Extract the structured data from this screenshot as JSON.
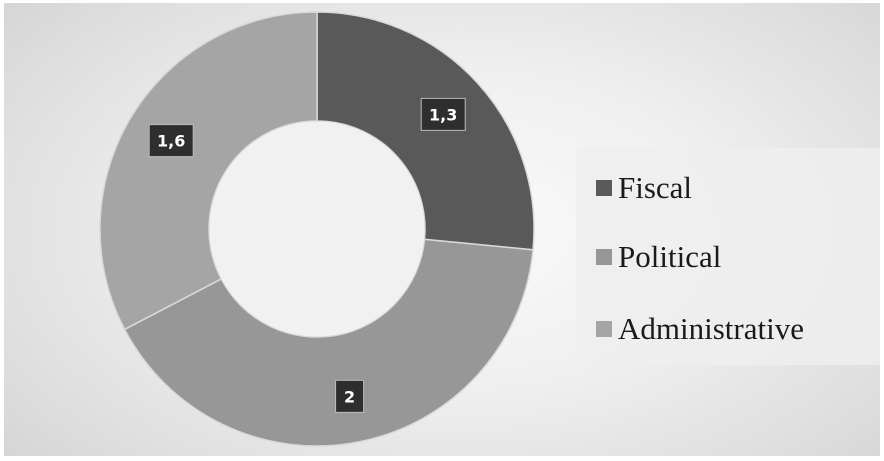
{
  "colors": {
    "Fiscal": "#595959",
    "Political": "#979797",
    "Administrative": "#a5a5a5",
    "label_box": "#2e2e2e",
    "label_text": "#ffffff"
  },
  "legend": {
    "items": [
      {
        "label": "Fiscal"
      },
      {
        "label": "Political"
      },
      {
        "label": "Administrative"
      }
    ]
  },
  "chart_data": {
    "type": "pie",
    "variant": "doughnut",
    "categories": [
      "Fiscal",
      "Political",
      "Administrative"
    ],
    "values": [
      1.3,
      2,
      1.6
    ],
    "data_labels": [
      "1,3",
      "2",
      "1,6"
    ],
    "title": "",
    "legend": "right"
  }
}
